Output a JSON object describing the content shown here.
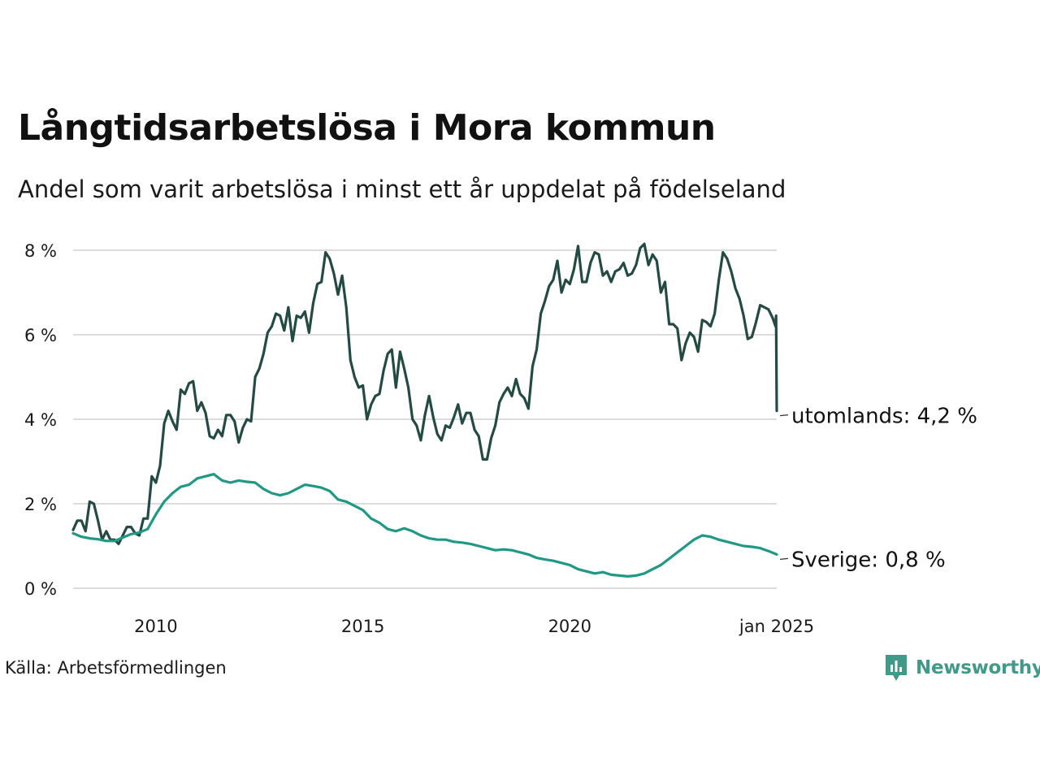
{
  "chart_data": {
    "type": "line",
    "title": "Långtidsarbetslösa i Mora kommun",
    "subtitle": "Andel som varit arbetslösa i minst ett år uppdelat på födelseland",
    "source": "Källa: Arbetsförmedlingen",
    "xlim": [
      2008.0,
      2025.0
    ],
    "ylim": [
      0,
      8
    ],
    "x_ticks": [
      {
        "value": 2010,
        "label": "2010"
      },
      {
        "value": 2015,
        "label": "2015"
      },
      {
        "value": 2020,
        "label": "2020"
      },
      {
        "value": 2025,
        "label": "jan 2025"
      }
    ],
    "y_ticks": [
      {
        "value": 0,
        "label": "0 %"
      },
      {
        "value": 2,
        "label": "2 %"
      },
      {
        "value": 4,
        "label": "4 %"
      },
      {
        "value": 6,
        "label": "6 %"
      },
      {
        "value": 8,
        "label": "8 %"
      }
    ],
    "grid": true,
    "series": [
      {
        "name": "utomlands",
        "end_label": "utomlands: 4,2 %",
        "color": "#244a44",
        "points": [
          [
            2008.0,
            1.38
          ],
          [
            2008.1,
            1.6
          ],
          [
            2008.2,
            1.6
          ],
          [
            2008.3,
            1.35
          ],
          [
            2008.4,
            2.05
          ],
          [
            2008.5,
            2.0
          ],
          [
            2008.6,
            1.6
          ],
          [
            2008.7,
            1.15
          ],
          [
            2008.8,
            1.35
          ],
          [
            2008.9,
            1.15
          ],
          [
            2009.0,
            1.15
          ],
          [
            2009.1,
            1.05
          ],
          [
            2009.2,
            1.25
          ],
          [
            2009.3,
            1.45
          ],
          [
            2009.4,
            1.45
          ],
          [
            2009.5,
            1.3
          ],
          [
            2009.6,
            1.25
          ],
          [
            2009.7,
            1.65
          ],
          [
            2009.8,
            1.65
          ],
          [
            2009.9,
            2.65
          ],
          [
            2010.0,
            2.5
          ],
          [
            2010.1,
            2.9
          ],
          [
            2010.2,
            3.9
          ],
          [
            2010.3,
            4.2
          ],
          [
            2010.4,
            3.95
          ],
          [
            2010.5,
            3.75
          ],
          [
            2010.6,
            4.7
          ],
          [
            2010.7,
            4.6
          ],
          [
            2010.8,
            4.85
          ],
          [
            2010.9,
            4.9
          ],
          [
            2011.0,
            4.2
          ],
          [
            2011.1,
            4.4
          ],
          [
            2011.2,
            4.15
          ],
          [
            2011.3,
            3.6
          ],
          [
            2011.4,
            3.55
          ],
          [
            2011.5,
            3.75
          ],
          [
            2011.6,
            3.6
          ],
          [
            2011.7,
            4.1
          ],
          [
            2011.8,
            4.1
          ],
          [
            2011.9,
            3.95
          ],
          [
            2012.0,
            3.45
          ],
          [
            2012.1,
            3.8
          ],
          [
            2012.2,
            4.0
          ],
          [
            2012.3,
            3.95
          ],
          [
            2012.4,
            5.0
          ],
          [
            2012.5,
            5.2
          ],
          [
            2012.6,
            5.55
          ],
          [
            2012.7,
            6.05
          ],
          [
            2012.8,
            6.2
          ],
          [
            2012.9,
            6.5
          ],
          [
            2013.0,
            6.45
          ],
          [
            2013.1,
            6.1
          ],
          [
            2013.2,
            6.65
          ],
          [
            2013.3,
            5.85
          ],
          [
            2013.4,
            6.45
          ],
          [
            2013.5,
            6.4
          ],
          [
            2013.6,
            6.55
          ],
          [
            2013.7,
            6.05
          ],
          [
            2013.8,
            6.75
          ],
          [
            2013.9,
            7.2
          ],
          [
            2014.0,
            7.25
          ],
          [
            2014.1,
            7.95
          ],
          [
            2014.2,
            7.8
          ],
          [
            2014.3,
            7.45
          ],
          [
            2014.4,
            6.95
          ],
          [
            2014.5,
            7.4
          ],
          [
            2014.6,
            6.65
          ],
          [
            2014.7,
            5.4
          ],
          [
            2014.8,
            5.0
          ],
          [
            2014.9,
            4.75
          ],
          [
            2015.0,
            4.8
          ],
          [
            2015.1,
            4.0
          ],
          [
            2015.2,
            4.35
          ],
          [
            2015.3,
            4.55
          ],
          [
            2015.4,
            4.6
          ],
          [
            2015.5,
            5.15
          ],
          [
            2015.6,
            5.55
          ],
          [
            2015.7,
            5.65
          ],
          [
            2015.8,
            4.75
          ],
          [
            2015.9,
            5.6
          ],
          [
            2016.0,
            5.2
          ],
          [
            2016.1,
            4.75
          ],
          [
            2016.2,
            4.0
          ],
          [
            2016.3,
            3.85
          ],
          [
            2016.4,
            3.5
          ],
          [
            2016.5,
            4.1
          ],
          [
            2016.6,
            4.55
          ],
          [
            2016.7,
            4.05
          ],
          [
            2016.8,
            3.65
          ],
          [
            2016.9,
            3.5
          ],
          [
            2017.0,
            3.85
          ],
          [
            2017.1,
            3.8
          ],
          [
            2017.2,
            4.05
          ],
          [
            2017.3,
            4.35
          ],
          [
            2017.4,
            3.9
          ],
          [
            2017.5,
            4.15
          ],
          [
            2017.6,
            4.15
          ],
          [
            2017.7,
            3.75
          ],
          [
            2017.8,
            3.6
          ],
          [
            2017.9,
            3.05
          ],
          [
            2018.0,
            3.05
          ],
          [
            2018.1,
            3.55
          ],
          [
            2018.2,
            3.85
          ],
          [
            2018.3,
            4.4
          ],
          [
            2018.4,
            4.6
          ],
          [
            2018.5,
            4.75
          ],
          [
            2018.6,
            4.55
          ],
          [
            2018.7,
            4.95
          ],
          [
            2018.8,
            4.6
          ],
          [
            2018.9,
            4.5
          ],
          [
            2019.0,
            4.25
          ],
          [
            2019.1,
            5.25
          ],
          [
            2019.2,
            5.65
          ],
          [
            2019.3,
            6.5
          ],
          [
            2019.4,
            6.8
          ],
          [
            2019.5,
            7.15
          ],
          [
            2019.6,
            7.3
          ],
          [
            2019.7,
            7.75
          ],
          [
            2019.8,
            7.0
          ],
          [
            2019.9,
            7.3
          ],
          [
            2020.0,
            7.2
          ],
          [
            2020.1,
            7.55
          ],
          [
            2020.2,
            8.1
          ],
          [
            2020.3,
            7.25
          ],
          [
            2020.4,
            7.25
          ],
          [
            2020.5,
            7.7
          ],
          [
            2020.6,
            7.95
          ],
          [
            2020.7,
            7.9
          ],
          [
            2020.8,
            7.4
          ],
          [
            2020.9,
            7.5
          ],
          [
            2021.0,
            7.25
          ],
          [
            2021.1,
            7.5
          ],
          [
            2021.2,
            7.55
          ],
          [
            2021.3,
            7.7
          ],
          [
            2021.4,
            7.4
          ],
          [
            2021.5,
            7.45
          ],
          [
            2021.6,
            7.65
          ],
          [
            2021.7,
            8.05
          ],
          [
            2021.8,
            8.15
          ],
          [
            2021.9,
            7.65
          ],
          [
            2022.0,
            7.9
          ],
          [
            2022.1,
            7.75
          ],
          [
            2022.2,
            7.0
          ],
          [
            2022.3,
            7.25
          ],
          [
            2022.4,
            6.25
          ],
          [
            2022.5,
            6.25
          ],
          [
            2022.6,
            6.15
          ],
          [
            2022.7,
            5.4
          ],
          [
            2022.8,
            5.8
          ],
          [
            2022.9,
            6.05
          ],
          [
            2023.0,
            5.95
          ],
          [
            2023.1,
            5.6
          ],
          [
            2023.2,
            6.35
          ],
          [
            2023.3,
            6.3
          ],
          [
            2023.4,
            6.2
          ],
          [
            2023.5,
            6.5
          ],
          [
            2023.6,
            7.3
          ],
          [
            2023.7,
            7.95
          ],
          [
            2023.8,
            7.8
          ],
          [
            2023.9,
            7.5
          ],
          [
            2024.0,
            7.1
          ],
          [
            2024.1,
            6.85
          ],
          [
            2024.2,
            6.45
          ],
          [
            2024.3,
            5.9
          ],
          [
            2024.4,
            5.95
          ],
          [
            2024.5,
            6.3
          ],
          [
            2024.6,
            6.7
          ],
          [
            2024.7,
            6.65
          ],
          [
            2024.8,
            6.6
          ],
          [
            2024.9,
            6.4
          ],
          [
            2024.97,
            6.2
          ],
          [
            2024.985,
            6.45
          ],
          [
            2025.0,
            4.2
          ]
        ]
      },
      {
        "name": "Sverige",
        "end_label": "Sverige: 0,8 %",
        "color": "#1f9985",
        "points": [
          [
            2008.0,
            1.3
          ],
          [
            2008.2,
            1.22
          ],
          [
            2008.4,
            1.18
          ],
          [
            2008.6,
            1.16
          ],
          [
            2008.8,
            1.12
          ],
          [
            2009.0,
            1.12
          ],
          [
            2009.2,
            1.2
          ],
          [
            2009.4,
            1.28
          ],
          [
            2009.6,
            1.32
          ],
          [
            2009.8,
            1.4
          ],
          [
            2010.0,
            1.75
          ],
          [
            2010.2,
            2.05
          ],
          [
            2010.4,
            2.25
          ],
          [
            2010.6,
            2.4
          ],
          [
            2010.8,
            2.45
          ],
          [
            2011.0,
            2.6
          ],
          [
            2011.2,
            2.65
          ],
          [
            2011.4,
            2.7
          ],
          [
            2011.6,
            2.55
          ],
          [
            2011.8,
            2.5
          ],
          [
            2012.0,
            2.55
          ],
          [
            2012.2,
            2.52
          ],
          [
            2012.4,
            2.5
          ],
          [
            2012.6,
            2.35
          ],
          [
            2012.8,
            2.25
          ],
          [
            2013.0,
            2.2
          ],
          [
            2013.2,
            2.25
          ],
          [
            2013.4,
            2.35
          ],
          [
            2013.6,
            2.45
          ],
          [
            2013.8,
            2.42
          ],
          [
            2014.0,
            2.38
          ],
          [
            2014.2,
            2.3
          ],
          [
            2014.4,
            2.1
          ],
          [
            2014.6,
            2.05
          ],
          [
            2014.8,
            1.95
          ],
          [
            2015.0,
            1.85
          ],
          [
            2015.2,
            1.65
          ],
          [
            2015.4,
            1.55
          ],
          [
            2015.6,
            1.4
          ],
          [
            2015.8,
            1.35
          ],
          [
            2016.0,
            1.42
          ],
          [
            2016.2,
            1.35
          ],
          [
            2016.4,
            1.25
          ],
          [
            2016.6,
            1.18
          ],
          [
            2016.8,
            1.15
          ],
          [
            2017.0,
            1.15
          ],
          [
            2017.2,
            1.1
          ],
          [
            2017.4,
            1.08
          ],
          [
            2017.6,
            1.05
          ],
          [
            2017.8,
            1.0
          ],
          [
            2018.0,
            0.95
          ],
          [
            2018.2,
            0.9
          ],
          [
            2018.4,
            0.92
          ],
          [
            2018.6,
            0.9
          ],
          [
            2018.8,
            0.85
          ],
          [
            2019.0,
            0.8
          ],
          [
            2019.2,
            0.72
          ],
          [
            2019.4,
            0.68
          ],
          [
            2019.6,
            0.65
          ],
          [
            2019.8,
            0.6
          ],
          [
            2020.0,
            0.55
          ],
          [
            2020.2,
            0.45
          ],
          [
            2020.4,
            0.4
          ],
          [
            2020.6,
            0.35
          ],
          [
            2020.8,
            0.38
          ],
          [
            2021.0,
            0.32
          ],
          [
            2021.2,
            0.3
          ],
          [
            2021.4,
            0.28
          ],
          [
            2021.6,
            0.3
          ],
          [
            2021.8,
            0.35
          ],
          [
            2022.0,
            0.45
          ],
          [
            2022.2,
            0.55
          ],
          [
            2022.4,
            0.7
          ],
          [
            2022.6,
            0.85
          ],
          [
            2022.8,
            1.0
          ],
          [
            2023.0,
            1.15
          ],
          [
            2023.2,
            1.25
          ],
          [
            2023.4,
            1.22
          ],
          [
            2023.6,
            1.15
          ],
          [
            2023.8,
            1.1
          ],
          [
            2024.0,
            1.05
          ],
          [
            2024.2,
            1.0
          ],
          [
            2024.4,
            0.98
          ],
          [
            2024.6,
            0.95
          ],
          [
            2024.8,
            0.88
          ],
          [
            2025.0,
            0.8
          ]
        ]
      }
    ]
  },
  "source": "Källa: Arbetsförmedlingen",
  "brand": {
    "name": "Newsworthy",
    "color": "#3f9a8a"
  }
}
